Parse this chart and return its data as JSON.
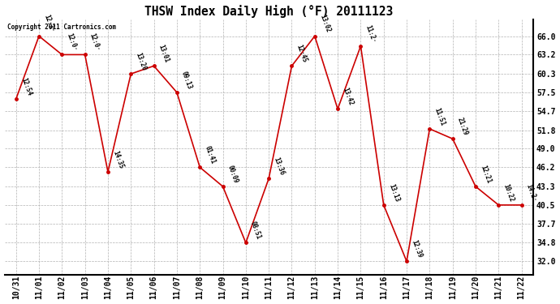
{
  "title": "THSW Index Daily High (°F) 20111123",
  "copyright": "Copyright 2011 Cartronics.com",
  "background_color": "#ffffff",
  "plot_bg_color": "#ffffff",
  "grid_color": "#aaaaaa",
  "line_color": "#cc0000",
  "marker_color": "#cc0000",
  "dates": [
    "10/31",
    "11/01",
    "11/02",
    "11/03",
    "11/04",
    "11/05",
    "11/06",
    "11/07",
    "11/08",
    "11/09",
    "11/10",
    "11/11",
    "11/12",
    "11/13",
    "11/14",
    "11/15",
    "11/16",
    "11/17",
    "11/18",
    "11/19",
    "11/20",
    "11/21",
    "11/22"
  ],
  "values": [
    56.5,
    66.0,
    63.2,
    63.2,
    45.5,
    60.3,
    61.5,
    57.5,
    46.2,
    43.3,
    34.8,
    44.5,
    61.5,
    66.0,
    55.0,
    64.5,
    40.5,
    32.0,
    52.0,
    50.5,
    43.3,
    40.5,
    40.5
  ],
  "labels": [
    "12:54",
    "12:3·",
    "12:0·",
    "12:0·",
    "14:35",
    "13:20",
    "13:01",
    "09:13",
    "01:41",
    "00:09",
    "08:51",
    "13:36",
    "12:45",
    "13:02",
    "13:42",
    "11:2·",
    "13:13",
    "12:39",
    "11:51",
    "21:29",
    "12:21",
    "10:22",
    "14:2·"
  ],
  "yticks": [
    32.0,
    34.8,
    37.7,
    40.5,
    43.3,
    46.2,
    49.0,
    51.8,
    54.7,
    57.5,
    60.3,
    63.2,
    66.0
  ],
  "ylim": [
    30.0,
    68.5
  ],
  "figsize": [
    6.9,
    3.75
  ],
  "dpi": 100
}
